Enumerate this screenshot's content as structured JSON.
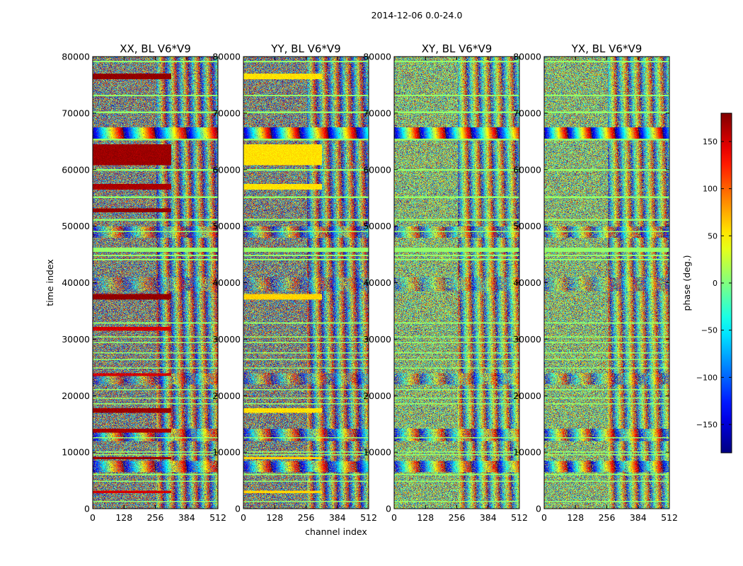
{
  "figure_title": "2014-12-06 0.0-24.0",
  "chart_data": {
    "type": "heatmap",
    "panels": [
      {
        "title": "XX, BL V6*V9",
        "ylabel": "time index",
        "xlabel": ""
      },
      {
        "title": "YY, BL V6*V9",
        "ylabel": "",
        "xlabel": "channel index"
      },
      {
        "title": "XY, BL V6*V9",
        "ylabel": "",
        "xlabel": ""
      },
      {
        "title": "YX, BL V6*V9",
        "ylabel": "",
        "xlabel": ""
      }
    ],
    "xlim": [
      0,
      512
    ],
    "ylim": [
      0,
      80000
    ],
    "x_ticks": [
      0,
      128,
      256,
      384,
      512
    ],
    "y_ticks": [
      0,
      10000,
      20000,
      30000,
      40000,
      50000,
      60000,
      70000,
      80000
    ],
    "colorbar": {
      "label": "phase (deg.)",
      "colormap": "jet",
      "range": [
        -180,
        180
      ],
      "ticks": [
        -150,
        -100,
        -50,
        0,
        50,
        100,
        150
      ],
      "tick_labels": [
        "−150",
        "−100",
        "−50",
        "0",
        "50",
        "100",
        "150"
      ]
    },
    "grid": false,
    "content": "dense per-channel phase noise with horizontal band structure and wrapping fringes; XX and YY contain strong near-constant phase bands"
  }
}
